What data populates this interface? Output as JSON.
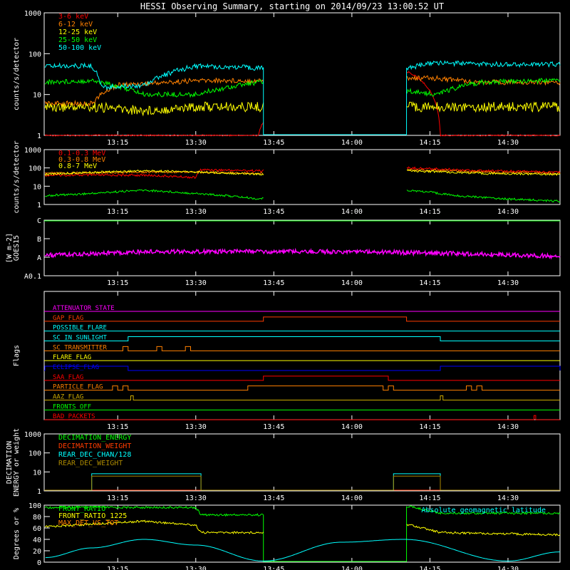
{
  "title": "HESSI Observing Summary, starting on 2014/09/23 13:00:52 UT",
  "x_ticks": [
    "13:15",
    "13:30",
    "13:45",
    "14:00",
    "14:15",
    "14:30"
  ],
  "chart_data": [
    {
      "type": "line",
      "ylabel": "counts/s/detector",
      "yscale": "log",
      "ylim": [
        1,
        1000
      ],
      "yticks": [
        "1",
        "10",
        "100",
        "1000"
      ],
      "legend": "top-left",
      "x_range": [
        "13:00:52",
        "14:40:00"
      ],
      "data_gap": [
        "13:43:00",
        "14:10:30"
      ],
      "series": [
        {
          "name": "3-6 keV",
          "color": "#ff0000",
          "x": [
            "13:01",
            "13:10",
            "13:20",
            "13:30",
            "13:42",
            "14:11",
            "14:17",
            "14:25",
            "14:40"
          ],
          "y": [
            1,
            1,
            1,
            1,
            1,
            35,
            1,
            1,
            1
          ]
        },
        {
          "name": "6-12 keV",
          "color": "#ff8000",
          "x": [
            "13:01",
            "13:10",
            "13:15",
            "13:25",
            "13:30",
            "13:42",
            "14:11",
            "14:16",
            "14:25",
            "14:40"
          ],
          "y": [
            6,
            6,
            17,
            20,
            22,
            22,
            25,
            25,
            20,
            20
          ]
        },
        {
          "name": "12-25 keV",
          "color": "#ffff00",
          "x": [
            "13:01",
            "13:10",
            "13:20",
            "13:30",
            "13:42",
            "14:11",
            "14:16",
            "14:25",
            "14:40"
          ],
          "y": [
            5,
            5,
            4,
            5,
            5,
            5,
            5,
            5,
            5
          ]
        },
        {
          "name": "25-50 keV",
          "color": "#00ff00",
          "x": [
            "13:01",
            "13:10",
            "13:20",
            "13:30",
            "13:42",
            "14:11",
            "14:16",
            "14:25",
            "14:40"
          ],
          "y": [
            20,
            22,
            10,
            10,
            20,
            12,
            10,
            20,
            22
          ]
        },
        {
          "name": "50-100 keV",
          "color": "#00ffff",
          "x": [
            "13:01",
            "13:10",
            "13:12",
            "13:20",
            "13:30",
            "13:42",
            "14:11",
            "14:16",
            "14:25",
            "14:40"
          ],
          "y": [
            50,
            50,
            15,
            17,
            50,
            45,
            45,
            60,
            55,
            55
          ]
        }
      ]
    },
    {
      "type": "line",
      "ylabel": "counts/s/detector",
      "yscale": "log",
      "ylim": [
        1,
        1000
      ],
      "yticks": [
        "1",
        "10",
        "100",
        "1000"
      ],
      "legend": "top-left",
      "series": [
        {
          "name": "0.1-0.3 MeV",
          "color": "#ff0000",
          "x": [
            "13:01",
            "13:20",
            "13:30",
            "13:31",
            "13:42",
            "14:11",
            "14:25",
            "14:40"
          ],
          "y": [
            40,
            40,
            30,
            80,
            70,
            100,
            70,
            60
          ]
        },
        {
          "name": "0.3-0.8 MeV",
          "color": "#ff8000",
          "x": [
            "13:01",
            "13:20",
            "13:30",
            "13:42",
            "14:11",
            "14:25",
            "14:40"
          ],
          "y": [
            50,
            60,
            60,
            50,
            80,
            60,
            50
          ]
        },
        {
          "name": "0.8-7 MeV",
          "color": "#ffff00",
          "x": [
            "13:01",
            "13:20",
            "13:30",
            "13:42",
            "14:11",
            "14:25",
            "14:40"
          ],
          "y": [
            45,
            70,
            60,
            45,
            70,
            50,
            45
          ]
        },
        {
          "name": "",
          "color": "#00ff00",
          "x": [
            "13:01",
            "13:10",
            "13:20",
            "13:30",
            "13:42",
            "14:11",
            "14:20",
            "14:30",
            "14:40"
          ],
          "y": [
            3,
            4,
            6,
            4,
            2,
            6,
            3,
            2,
            1.5
          ]
        }
      ]
    },
    {
      "type": "line",
      "ylabel": "GOES15",
      "yunit": "[W m-2]",
      "yticks": [
        "A0.1",
        "A",
        "B",
        "C"
      ],
      "series": [
        {
          "name": "",
          "color": "#ff00ff",
          "x": [
            "13:01",
            "13:20",
            "13:40",
            "14:00",
            "14:20",
            "14:40"
          ],
          "y": [
            1.1,
            1.3,
            1.3,
            1.3,
            1.2,
            1.05
          ]
        }
      ]
    },
    {
      "type": "line",
      "ylabel": "Flags",
      "series": [
        {
          "name": "ATTENUATOR_STATE",
          "color": "#ff00ff",
          "on": []
        },
        {
          "name": "GAP_FLAG",
          "color": "#ff3c00",
          "on": [
            [
              "13:43:00",
              "14:10:30"
            ]
          ]
        },
        {
          "name": "POSSIBLE_FLARE",
          "color": "#00ffff",
          "on": []
        },
        {
          "name": "SC_IN_SUNLIGHT",
          "color": "#00ffff",
          "on": [
            [
              "13:17:00",
              "14:17:00"
            ]
          ]
        },
        {
          "name": "SC_TRANSMITTER",
          "color": "#ff8000",
          "on": [
            [
              "13:16:00",
              "13:17:00"
            ],
            [
              "13:22:30",
              "13:23:30"
            ],
            [
              "13:28:00",
              "13:29:00"
            ]
          ]
        },
        {
          "name": "FLARE_FLAG",
          "color": "#ffff00",
          "on": []
        },
        {
          "name": "ECLIPSE_FLAG",
          "color": "#0000ff",
          "on": [
            [
              "13:01:00",
              "13:17:00"
            ],
            [
              "14:17:00",
              "14:40:00"
            ]
          ]
        },
        {
          "name": "SAA_FLAG",
          "color": "#ff0000",
          "on": [
            [
              "13:43:00",
              "14:07:00"
            ]
          ]
        },
        {
          "name": "PARTICLE_FLAG",
          "color": "#ff8000",
          "on": [
            [
              "13:14:00",
              "13:15:00"
            ],
            [
              "13:16:00",
              "13:17:00"
            ],
            [
              "13:40:00",
              "14:06:00"
            ],
            [
              "14:07:00",
              "14:08:00"
            ],
            [
              "14:22:00",
              "14:23:00"
            ],
            [
              "14:24:00",
              "14:25:00"
            ]
          ]
        },
        {
          "name": "AAZ_FLAG",
          "color": "#ccaa00",
          "on": [
            [
              "13:17:30",
              "13:18:00"
            ],
            [
              "14:17:00",
              "14:17:30"
            ]
          ]
        },
        {
          "name": "FRONTS_OFF",
          "color": "#00ff00",
          "on": []
        },
        {
          "name": "BAD_PACKETS",
          "color": "#ff0000",
          "on": [
            [
              "14:35:00",
              "14:35:20"
            ]
          ]
        }
      ]
    },
    {
      "type": "line",
      "ylabel": "DECIMATION ENERGY or weight",
      "yscale": "log",
      "ylim": [
        1,
        1000
      ],
      "yticks": [
        "1",
        "10",
        "100",
        "1000"
      ],
      "legend": "top-left",
      "series": [
        {
          "name": "DECIMATION_ENERGY",
          "color": "#00ff00",
          "level": 1
        },
        {
          "name": "DECIMATION_WEIGHT",
          "color": "#ff3c00",
          "level": 1
        },
        {
          "name": "REAR_DEC_CHAN/128",
          "color": "#00ffff",
          "on": [
            [
              "13:10:00",
              "13:31:00"
            ],
            [
              "14:08:00",
              "14:17:00"
            ]
          ],
          "on_level": 8
        },
        {
          "name": "REAR_DEC_WEIGHT",
          "color": "#aa8800",
          "on": [
            [
              "13:10:00",
              "13:31:00"
            ],
            [
              "14:08:00",
              "14:17:00"
            ]
          ],
          "on_level": 6
        }
      ]
    },
    {
      "type": "line",
      "ylabel": "Degrees or %",
      "ylim": [
        0,
        100
      ],
      "yticks": [
        "0",
        "20",
        "40",
        "60",
        "80",
        "100"
      ],
      "annotation": "Absolute geomagnetic latitude",
      "series": [
        {
          "name": "FRONT_RATIO",
          "color": "#00ff00",
          "x": [
            "13:01",
            "13:30",
            "13:31",
            "13:42",
            "14:11",
            "14:17",
            "14:40"
          ],
          "y": [
            96,
            96,
            83,
            83,
            98,
            86,
            86
          ]
        },
        {
          "name": "FRONT_RATIO_1225",
          "color": "#ffff00",
          "x": [
            "13:01",
            "13:20",
            "13:30",
            "13:31",
            "13:42",
            "14:11",
            "14:17",
            "14:40"
          ],
          "y": [
            62,
            72,
            65,
            52,
            52,
            66,
            52,
            48
          ]
        },
        {
          "name": "MAX_DET_VS_TOT",
          "color": "#ff8000",
          "x": [],
          "y": []
        },
        {
          "name": "",
          "color": "#00ffff",
          "x": [
            "13:01",
            "13:10",
            "13:20",
            "13:30",
            "13:43",
            "13:58",
            "14:10",
            "14:30",
            "14:40"
          ],
          "y": [
            8,
            25,
            40,
            30,
            2,
            35,
            40,
            2,
            18
          ]
        }
      ]
    }
  ]
}
